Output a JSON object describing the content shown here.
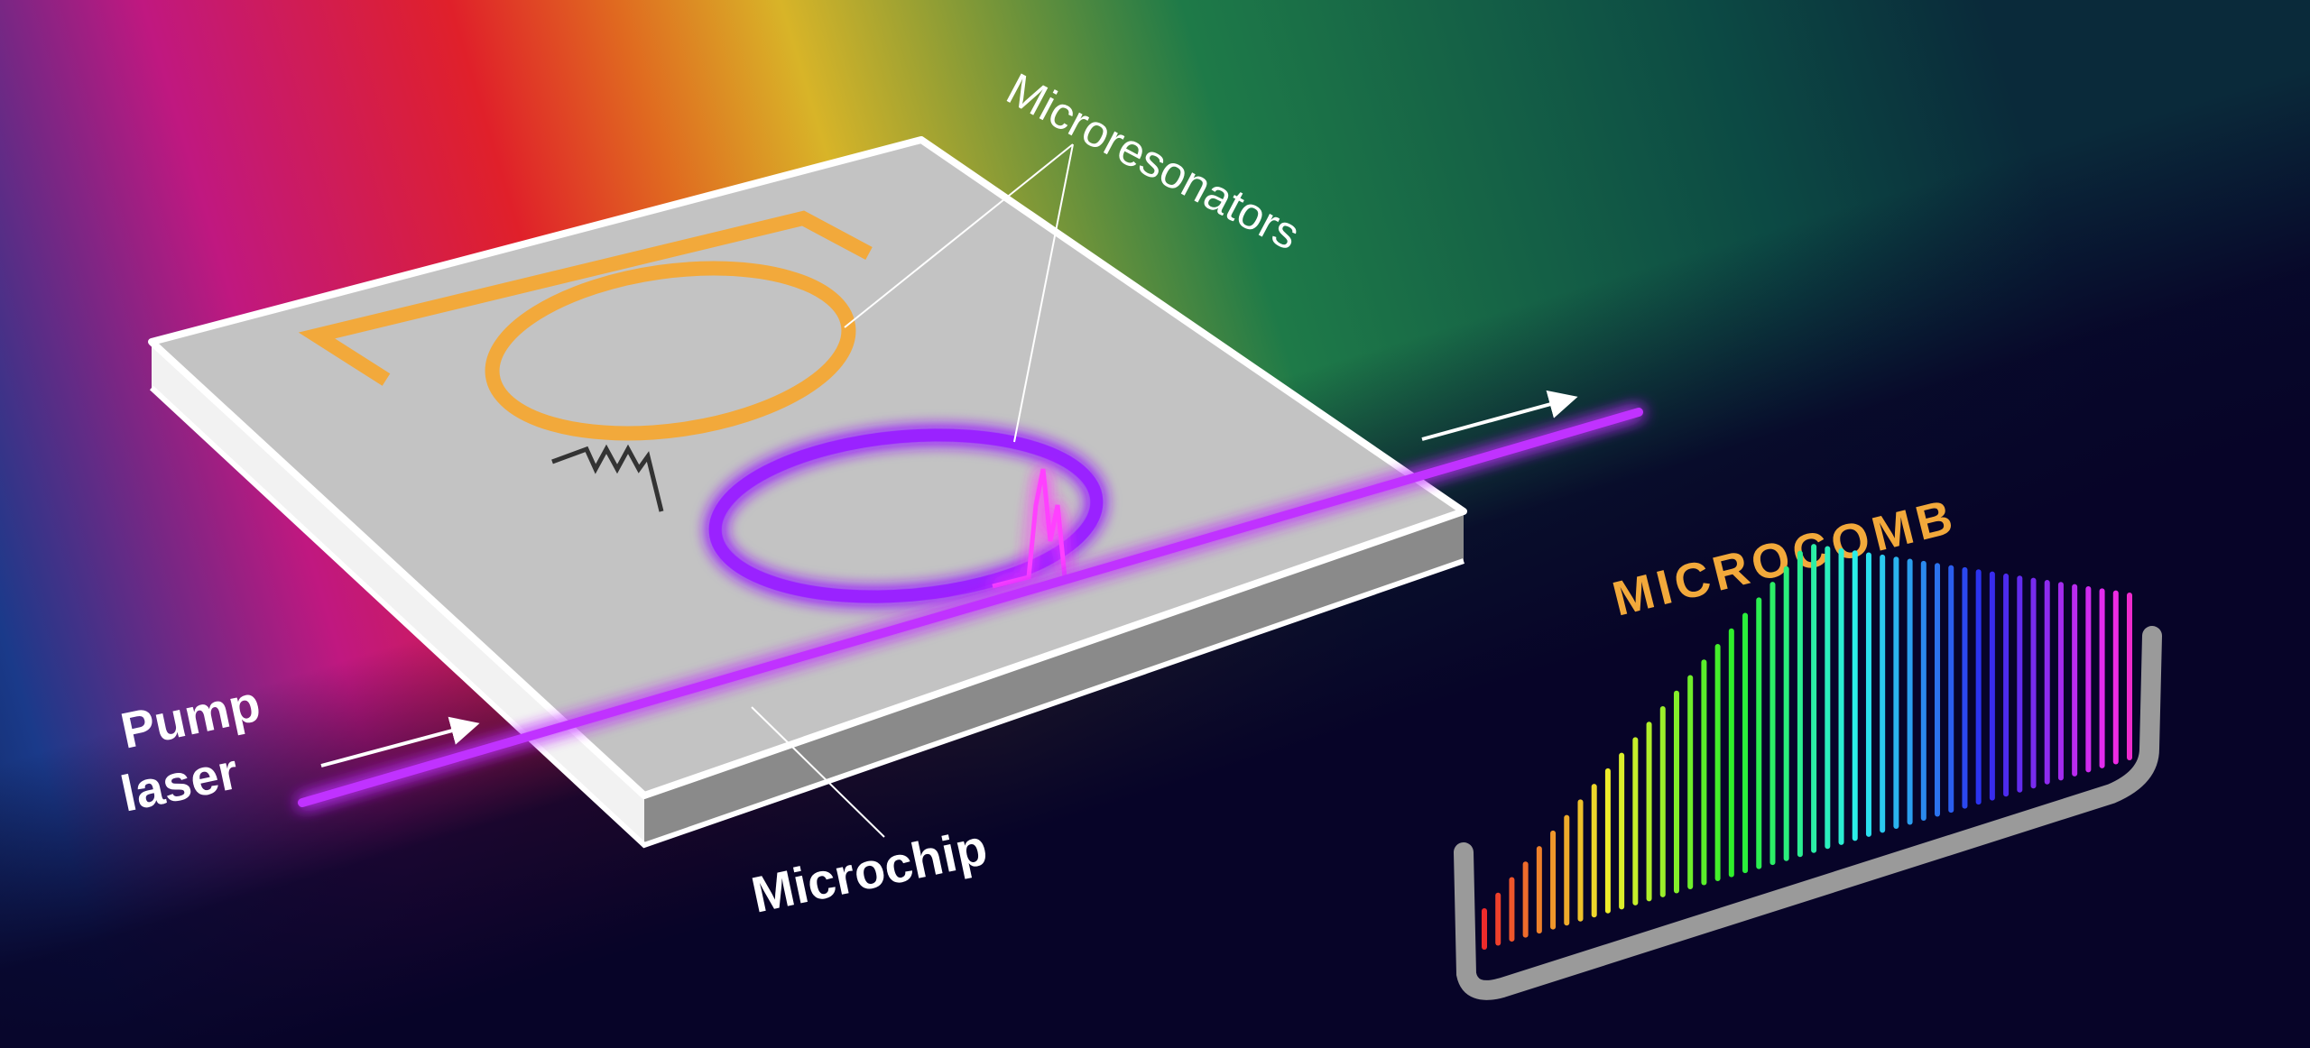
{
  "labels": {
    "microresonators": "Microresonators",
    "pump": "Pump",
    "laser": "laser",
    "microchip": "Microchip",
    "microcomb": "MICROCOMB"
  }
}
